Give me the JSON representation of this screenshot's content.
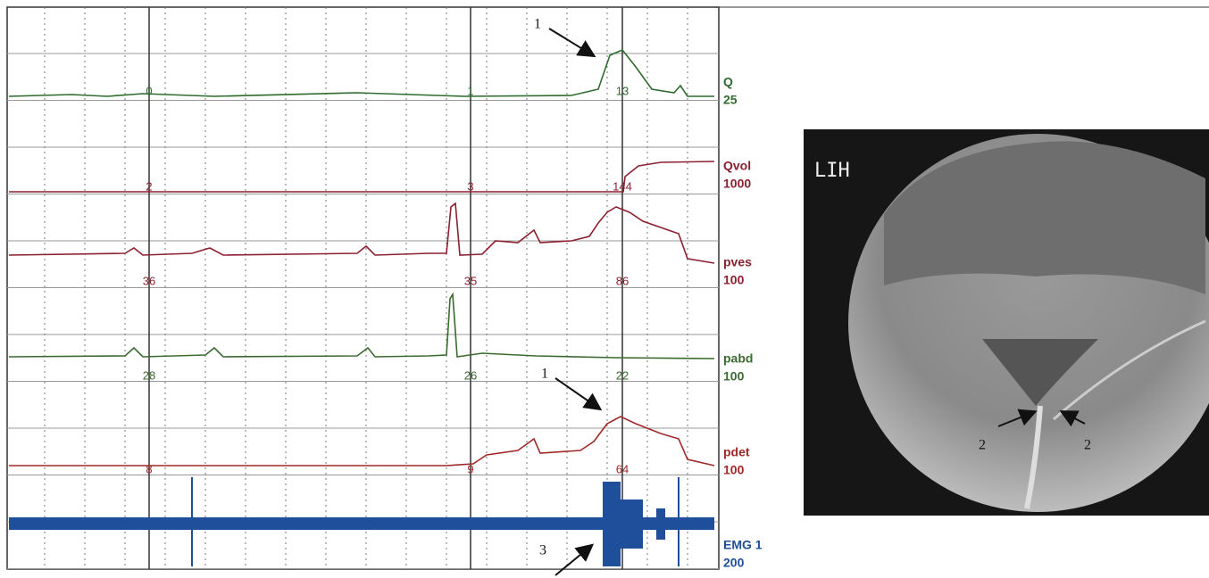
{
  "tracing": {
    "channels": [
      {
        "name": "Q",
        "scale": "25",
        "markers": [
          "0",
          "1",
          "13"
        ],
        "color": "#2f6b2f"
      },
      {
        "name": "Qvol",
        "scale": "1000",
        "markers": [
          "2",
          "3",
          "144"
        ],
        "color": "#8b2030"
      },
      {
        "name": "pves",
        "scale": "100",
        "markers": [
          "36",
          "35",
          "86"
        ],
        "color": "#8b2030"
      },
      {
        "name": "pabd",
        "scale": "100",
        "markers": [
          "28",
          "26",
          "22"
        ],
        "color": "#3a6a30"
      },
      {
        "name": "pdet",
        "scale": "100",
        "markers": [
          "8",
          "9",
          "64"
        ],
        "color": "#a02828"
      },
      {
        "name": "EMG 1",
        "scale": "200",
        "color": "#1f4e9a"
      }
    ],
    "annotations": [
      "1",
      "1",
      "3"
    ]
  },
  "image": {
    "label": "LIH",
    "annotations": [
      "2",
      "2"
    ]
  }
}
